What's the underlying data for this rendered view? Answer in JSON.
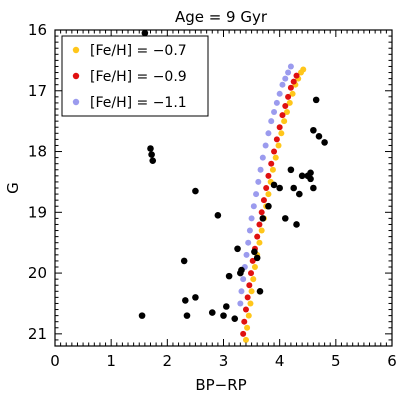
{
  "chart_data": {
    "type": "scatter",
    "title": "Age = 9 Gyr",
    "xlabel": "BP−RP",
    "ylabel": "G",
    "xlim": [
      0,
      6
    ],
    "ylim": [
      21.2,
      16.0
    ],
    "y_inverted": true,
    "x_ticks": [
      "0",
      "1",
      "2",
      "3",
      "4",
      "5",
      "6"
    ],
    "y_ticks": [
      "16",
      "17",
      "18",
      "19",
      "20",
      "21"
    ],
    "legend_position": "top-left",
    "series": [
      {
        "name": "[Fe/H] = −0.7",
        "color": "#ffc61a",
        "x": [
          3.4,
          3.42,
          3.45,
          3.48,
          3.5,
          3.53,
          3.56,
          3.6,
          3.64,
          3.68,
          3.72,
          3.76,
          3.8,
          3.84,
          3.88,
          3.93,
          3.98,
          4.03,
          4.08,
          4.13,
          4.18,
          4.23,
          4.28,
          4.33,
          4.38,
          4.42
        ],
        "y": [
          21.1,
          20.9,
          20.7,
          20.5,
          20.3,
          20.1,
          19.9,
          19.7,
          19.5,
          19.3,
          19.1,
          18.9,
          18.7,
          18.5,
          18.3,
          18.1,
          17.9,
          17.7,
          17.5,
          17.35,
          17.2,
          17.05,
          16.9,
          16.8,
          16.7,
          16.65
        ]
      },
      {
        "name": "[Fe/H] = −0.9",
        "color": "#e01010",
        "x": [
          3.35,
          3.37,
          3.4,
          3.43,
          3.46,
          3.49,
          3.52,
          3.56,
          3.6,
          3.64,
          3.68,
          3.72,
          3.76,
          3.8,
          3.85,
          3.9,
          3.95,
          4.0,
          4.05,
          4.1,
          4.15,
          4.2,
          4.25,
          4.3
        ],
        "y": [
          21.0,
          20.8,
          20.6,
          20.4,
          20.2,
          20.0,
          19.8,
          19.6,
          19.4,
          19.2,
          19.0,
          18.8,
          18.6,
          18.4,
          18.2,
          18.0,
          17.8,
          17.6,
          17.4,
          17.25,
          17.1,
          16.95,
          16.85,
          16.75
        ]
      },
      {
        "name": "[Fe/H] = −1.1",
        "color": "#9b9bee",
        "x": [
          3.3,
          3.32,
          3.35,
          3.38,
          3.41,
          3.44,
          3.47,
          3.5,
          3.54,
          3.58,
          3.62,
          3.66,
          3.7,
          3.75,
          3.8,
          3.85,
          3.9,
          3.95,
          4.0,
          4.05,
          4.1,
          4.15,
          4.2
        ],
        "y": [
          20.5,
          20.3,
          20.1,
          19.9,
          19.7,
          19.5,
          19.3,
          19.1,
          18.9,
          18.7,
          18.5,
          18.3,
          18.1,
          17.9,
          17.7,
          17.5,
          17.35,
          17.2,
          17.05,
          16.9,
          16.8,
          16.7,
          16.6
        ]
      },
      {
        "name": "",
        "color": "#000000",
        "x": [
          1.6,
          1.7,
          1.72,
          1.74,
          2.5,
          2.3,
          2.32,
          2.35,
          2.5,
          2.8,
          2.9,
          3.0,
          3.05,
          3.1,
          3.2,
          3.25,
          3.3,
          3.32,
          1.55,
          3.55,
          3.6,
          3.65,
          3.7,
          3.8,
          3.9,
          4.0,
          4.1,
          4.2,
          4.3,
          4.4,
          4.6,
          4.65,
          4.55,
          4.5,
          4.7,
          4.8,
          4.55,
          4.6,
          4.25,
          4.35
        ],
        "y": [
          16.05,
          17.95,
          18.05,
          18.15,
          18.65,
          19.8,
          20.45,
          20.7,
          20.4,
          20.65,
          19.05,
          20.7,
          20.55,
          20.05,
          20.75,
          19.6,
          20.0,
          19.95,
          20.7,
          19.65,
          19.75,
          20.3,
          19.1,
          18.9,
          18.55,
          18.6,
          19.1,
          18.3,
          19.2,
          18.4,
          17.65,
          17.15,
          18.35,
          18.4,
          17.75,
          17.85,
          18.45,
          18.6,
          18.6,
          18.7
        ]
      }
    ]
  }
}
